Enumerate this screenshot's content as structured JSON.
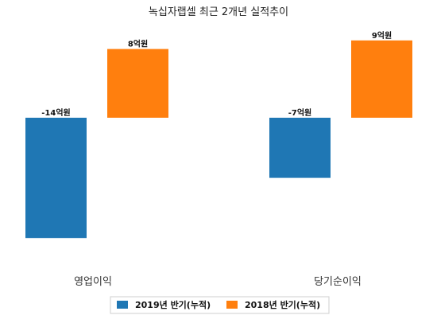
{
  "chart_data": {
    "type": "bar",
    "title": "녹십자랩셀 최근 2개년 실적추이",
    "categories": [
      "영업이익",
      "당기순이익"
    ],
    "unit": "억원",
    "series": [
      {
        "name": "2019년 반기(누적)",
        "color": "#1f77b4",
        "values": [
          -14,
          -7
        ],
        "labels": [
          "-14억원",
          "-7억원"
        ]
      },
      {
        "name": "2018년 반기(누적)",
        "color": "#ff7f0e",
        "values": [
          8,
          9
        ],
        "labels": [
          "8억원",
          "9억원"
        ]
      }
    ],
    "legend": "bottom-center"
  }
}
